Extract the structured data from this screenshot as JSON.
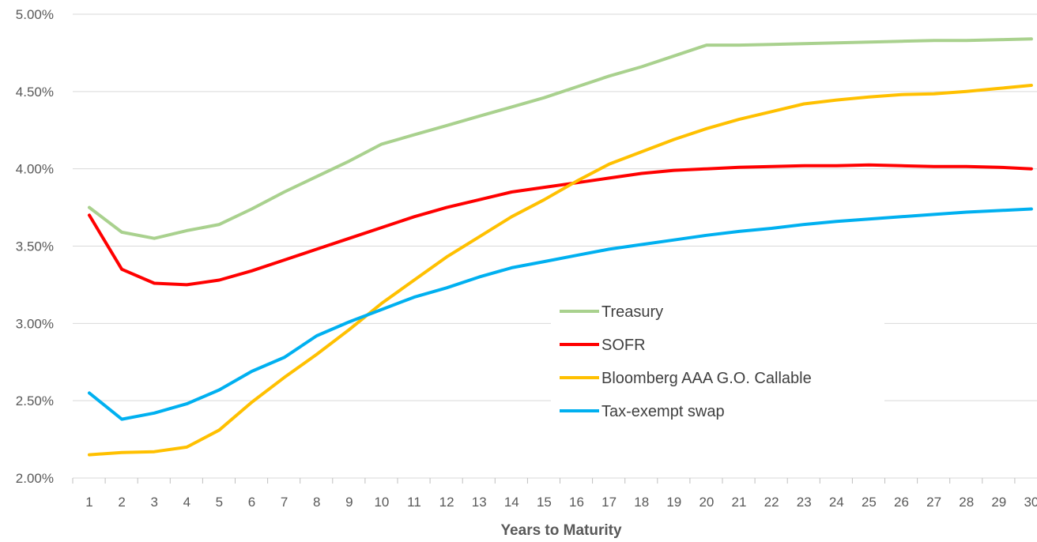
{
  "chart_data": {
    "type": "line",
    "title": "",
    "xlabel": "Years to Maturity",
    "ylabel": "",
    "x": [
      1,
      2,
      3,
      4,
      5,
      6,
      7,
      8,
      9,
      10,
      11,
      12,
      13,
      14,
      15,
      16,
      17,
      18,
      19,
      20,
      21,
      22,
      23,
      24,
      25,
      26,
      27,
      28,
      29,
      30
    ],
    "y_ticks": [
      "2.00%",
      "2.50%",
      "3.00%",
      "3.50%",
      "4.00%",
      "4.50%",
      "5.00%"
    ],
    "ylim": [
      2.0,
      5.0
    ],
    "y_unit": "%",
    "grid": true,
    "legend_position": "center-right",
    "series": [
      {
        "name": "Treasury",
        "color": "#a9d18e",
        "values": [
          3.75,
          3.59,
          3.55,
          3.6,
          3.64,
          3.74,
          3.85,
          3.95,
          4.05,
          4.16,
          4.22,
          4.28,
          4.34,
          4.4,
          4.46,
          4.53,
          4.6,
          4.66,
          4.73,
          4.8,
          4.8,
          4.805,
          4.81,
          4.815,
          4.82,
          4.825,
          4.83,
          4.83,
          4.835,
          4.84
        ]
      },
      {
        "name": "SOFR",
        "color": "#ff0000",
        "values": [
          3.7,
          3.35,
          3.26,
          3.25,
          3.28,
          3.34,
          3.41,
          3.48,
          3.55,
          3.62,
          3.69,
          3.75,
          3.8,
          3.85,
          3.88,
          3.91,
          3.94,
          3.97,
          3.99,
          4.0,
          4.01,
          4.015,
          4.02,
          4.02,
          4.025,
          4.02,
          4.015,
          4.015,
          4.01,
          4.0
        ]
      },
      {
        "name": "Bloomberg AAA G.O. Callable",
        "color": "#ffc000",
        "values": [
          2.15,
          2.165,
          2.17,
          2.2,
          2.31,
          2.49,
          2.65,
          2.8,
          2.96,
          3.13,
          3.28,
          3.43,
          3.56,
          3.69,
          3.8,
          3.92,
          4.03,
          4.11,
          4.19,
          4.26,
          4.32,
          4.37,
          4.42,
          4.445,
          4.465,
          4.48,
          4.485,
          4.5,
          4.52,
          4.54
        ]
      },
      {
        "name": "Tax-exempt swap",
        "color": "#00b0f0",
        "values": [
          2.55,
          2.38,
          2.42,
          2.48,
          2.57,
          2.69,
          2.78,
          2.92,
          3.01,
          3.09,
          3.17,
          3.23,
          3.3,
          3.36,
          3.4,
          3.44,
          3.48,
          3.51,
          3.54,
          3.57,
          3.595,
          3.615,
          3.64,
          3.66,
          3.675,
          3.69,
          3.705,
          3.72,
          3.73,
          3.74
        ]
      }
    ]
  }
}
